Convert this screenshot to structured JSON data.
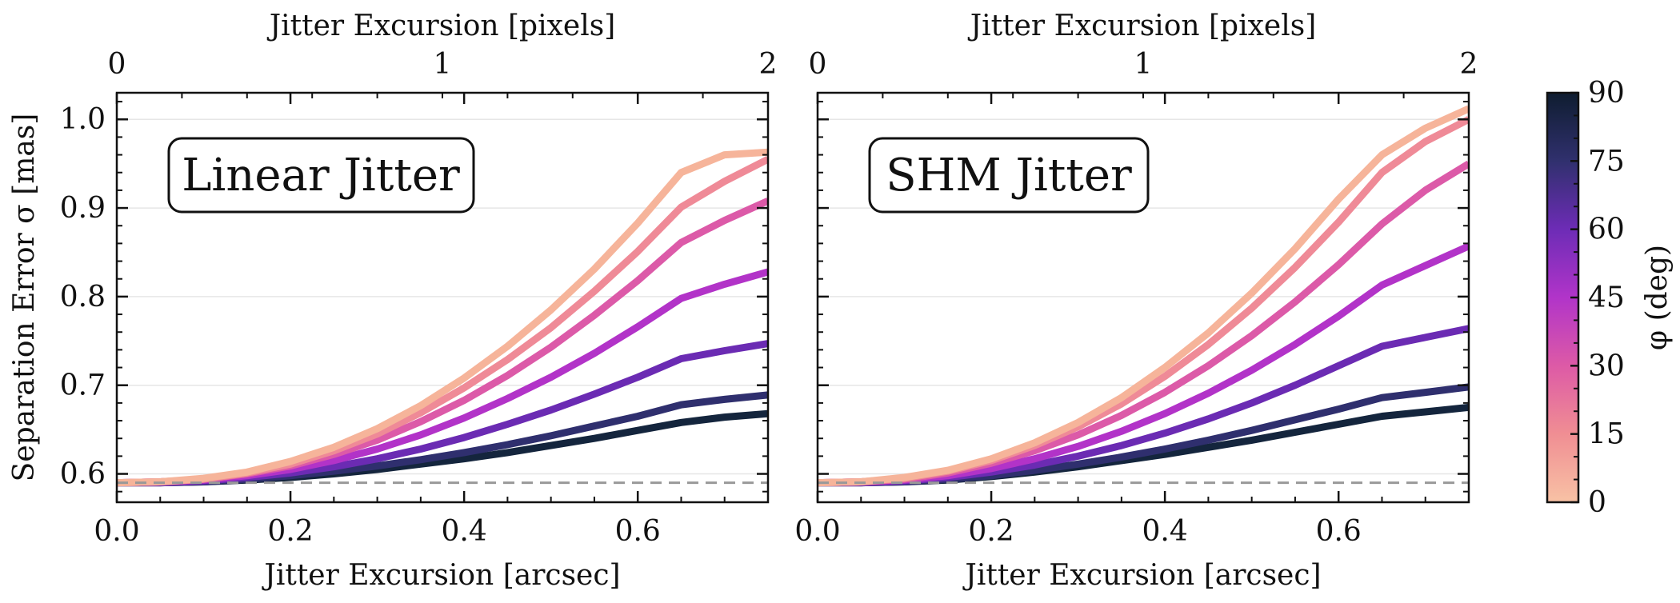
{
  "chart_data": [
    {
      "type": "line",
      "panel_label": "Linear Jitter",
      "xlabel": "Jitter Excursion [arcsec]",
      "x2label": "Jitter Excursion [pixels]",
      "ylabel": "Separation Error σ [mas]",
      "xlim": [
        0.0,
        0.75
      ],
      "ylim": [
        0.568,
        1.03
      ],
      "xticks": [
        "0.0",
        "0.2",
        "0.4",
        "0.6"
      ],
      "xtick_values": [
        0.0,
        0.2,
        0.4,
        0.6
      ],
      "x2ticks": [
        "0",
        "1",
        "2"
      ],
      "x2tick_values": [
        0,
        1,
        2
      ],
      "x2lim": [
        0,
        2
      ],
      "yticks": [
        "0.6",
        "0.7",
        "0.8",
        "0.9",
        "1.0"
      ],
      "ytick_values": [
        0.6,
        0.7,
        0.8,
        0.9,
        1.0
      ],
      "baseline": 0.59,
      "grid": true,
      "x": [
        0.0,
        0.05,
        0.1,
        0.15,
        0.2,
        0.25,
        0.3,
        0.35,
        0.4,
        0.45,
        0.5,
        0.55,
        0.6,
        0.65,
        0.7,
        0.75
      ],
      "series": [
        {
          "phi": 0,
          "color": "#f6b49a",
          "values": [
            0.59,
            0.591,
            0.595,
            0.602,
            0.614,
            0.63,
            0.651,
            0.677,
            0.708,
            0.744,
            0.785,
            0.831,
            0.883,
            0.94,
            0.96,
            0.963
          ]
        },
        {
          "phi": 15,
          "color": "#ef8a97",
          "values": [
            0.59,
            0.591,
            0.594,
            0.601,
            0.611,
            0.626,
            0.645,
            0.669,
            0.697,
            0.729,
            0.765,
            0.806,
            0.851,
            0.901,
            0.93,
            0.955
          ]
        },
        {
          "phi": 30,
          "color": "#dc5aa8",
          "values": [
            0.59,
            0.591,
            0.594,
            0.6,
            0.609,
            0.622,
            0.638,
            0.659,
            0.683,
            0.711,
            0.743,
            0.779,
            0.818,
            0.861,
            0.886,
            0.908
          ]
        },
        {
          "phi": 45,
          "color": "#b233c8",
          "values": [
            0.59,
            0.591,
            0.593,
            0.598,
            0.605,
            0.615,
            0.628,
            0.644,
            0.663,
            0.685,
            0.709,
            0.736,
            0.766,
            0.798,
            0.814,
            0.828
          ]
        },
        {
          "phi": 60,
          "color": "#6b2bb3",
          "values": [
            0.59,
            0.59,
            0.592,
            0.596,
            0.601,
            0.608,
            0.617,
            0.628,
            0.641,
            0.656,
            0.672,
            0.69,
            0.709,
            0.73,
            0.739,
            0.747
          ]
        },
        {
          "phi": 75,
          "color": "#2f2f6e",
          "values": [
            0.59,
            0.59,
            0.591,
            0.594,
            0.598,
            0.603,
            0.609,
            0.616,
            0.624,
            0.633,
            0.643,
            0.654,
            0.665,
            0.678,
            0.684,
            0.689
          ]
        },
        {
          "phi": 90,
          "color": "#14253d",
          "values": [
            0.59,
            0.59,
            0.591,
            0.593,
            0.596,
            0.6,
            0.605,
            0.611,
            0.617,
            0.624,
            0.632,
            0.64,
            0.649,
            0.658,
            0.664,
            0.668
          ]
        }
      ]
    },
    {
      "type": "line",
      "panel_label": "SHM Jitter",
      "xlabel": "Jitter Excursion [arcsec]",
      "x2label": "Jitter Excursion [pixels]",
      "xlim": [
        0.0,
        0.75
      ],
      "ylim": [
        0.568,
        1.03
      ],
      "xticks": [
        "0.0",
        "0.2",
        "0.4",
        "0.6"
      ],
      "xtick_values": [
        0.0,
        0.2,
        0.4,
        0.6
      ],
      "x2ticks": [
        "0",
        "1",
        "2"
      ],
      "x2tick_values": [
        0,
        1,
        2
      ],
      "x2lim": [
        0,
        2
      ],
      "baseline": 0.59,
      "grid": true,
      "x": [
        0.0,
        0.05,
        0.1,
        0.15,
        0.2,
        0.25,
        0.3,
        0.35,
        0.4,
        0.45,
        0.5,
        0.55,
        0.6,
        0.65,
        0.7,
        0.75
      ],
      "series": [
        {
          "phi": 0,
          "color": "#f6b49a",
          "values": [
            0.59,
            0.591,
            0.596,
            0.604,
            0.617,
            0.635,
            0.658,
            0.686,
            0.72,
            0.759,
            0.804,
            0.854,
            0.91,
            0.96,
            0.99,
            1.012
          ]
        },
        {
          "phi": 15,
          "color": "#ef8a97",
          "values": [
            0.59,
            0.591,
            0.595,
            0.603,
            0.615,
            0.632,
            0.653,
            0.679,
            0.71,
            0.746,
            0.787,
            0.833,
            0.884,
            0.94,
            0.975,
            1.0
          ]
        },
        {
          "phi": 30,
          "color": "#dc5aa8",
          "values": [
            0.59,
            0.591,
            0.594,
            0.601,
            0.612,
            0.626,
            0.644,
            0.666,
            0.692,
            0.722,
            0.756,
            0.794,
            0.836,
            0.882,
            0.92,
            0.95
          ]
        },
        {
          "phi": 45,
          "color": "#b233c8",
          "values": [
            0.59,
            0.591,
            0.593,
            0.598,
            0.606,
            0.617,
            0.631,
            0.648,
            0.668,
            0.691,
            0.717,
            0.746,
            0.778,
            0.813,
            0.835,
            0.857
          ]
        },
        {
          "phi": 60,
          "color": "#6b2bb3",
          "values": [
            0.59,
            0.59,
            0.592,
            0.596,
            0.602,
            0.61,
            0.62,
            0.632,
            0.646,
            0.662,
            0.68,
            0.7,
            0.722,
            0.744,
            0.754,
            0.764
          ]
        },
        {
          "phi": 75,
          "color": "#2f2f6e",
          "values": [
            0.59,
            0.59,
            0.591,
            0.594,
            0.598,
            0.604,
            0.611,
            0.619,
            0.628,
            0.638,
            0.649,
            0.661,
            0.673,
            0.686,
            0.692,
            0.698
          ]
        },
        {
          "phi": 90,
          "color": "#14253d",
          "values": [
            0.59,
            0.59,
            0.591,
            0.593,
            0.597,
            0.602,
            0.608,
            0.615,
            0.622,
            0.63,
            0.638,
            0.647,
            0.656,
            0.665,
            0.67,
            0.675
          ]
        }
      ]
    }
  ],
  "colorbar": {
    "label": "φ (deg)",
    "ticks": [
      "0",
      "15",
      "30",
      "45",
      "60",
      "75",
      "90"
    ],
    "tick_values": [
      0,
      15,
      30,
      45,
      60,
      75,
      90
    ],
    "range": [
      0,
      90
    ],
    "colors": [
      "#f8c2a5",
      "#f08e93",
      "#dd5aa6",
      "#b134c9",
      "#6d2cb6",
      "#30306e",
      "#0f1d30"
    ]
  },
  "style": {
    "baseline_color": "#999999",
    "grid_color": "#e6e6e6",
    "axis_color": "#111111"
  }
}
